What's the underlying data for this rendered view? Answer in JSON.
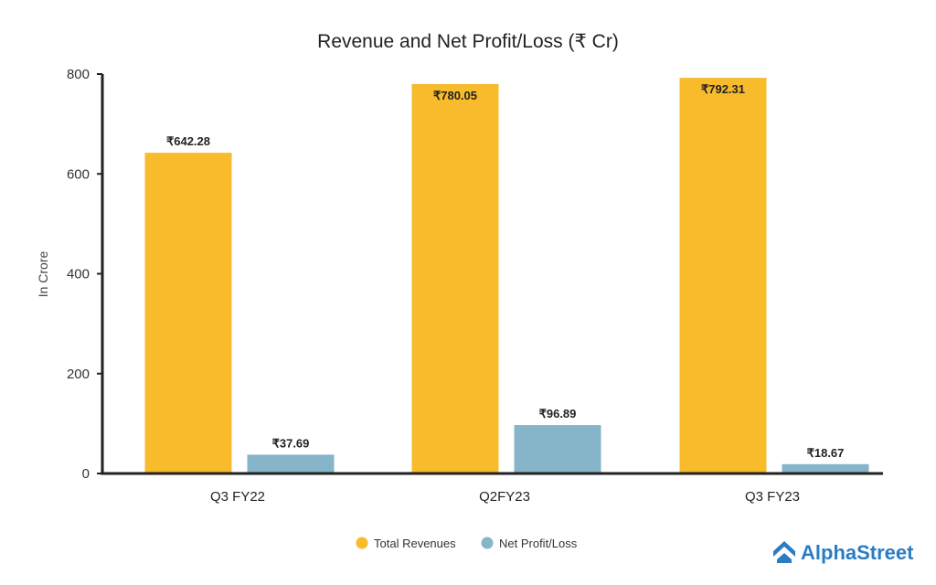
{
  "chart_data": {
    "type": "bar",
    "title": "Revenue and Net Profit/Loss (₹ Cr)",
    "xlabel": "",
    "ylabel": "In Crore",
    "ylim": [
      0,
      800
    ],
    "yticks": [
      0,
      200,
      400,
      600,
      800
    ],
    "ytick_labels": [
      "0",
      "200",
      "400",
      "600",
      "800"
    ],
    "grid": false,
    "legend_position": "bottom-center",
    "categories": [
      "Q3 FY22",
      "Q2FY23",
      "Q3 FY23"
    ],
    "series": [
      {
        "name": "Total Revenues",
        "color": "#f7bb2b",
        "values": [
          642.28,
          780.05,
          792.31
        ],
        "labels": [
          "₹642.28",
          "₹780.05",
          "₹792.31"
        ]
      },
      {
        "name": "Net Profit/Loss",
        "color": "#86b4c9",
        "values": [
          37.69,
          96.89,
          18.67
        ],
        "labels": [
          "₹37.69",
          "₹96.89",
          "₹18.67"
        ]
      }
    ]
  },
  "brand": {
    "name": "AlphaStreet",
    "logo_icon": "alphastreet-logo-icon",
    "color": "#2b7cc4"
  }
}
